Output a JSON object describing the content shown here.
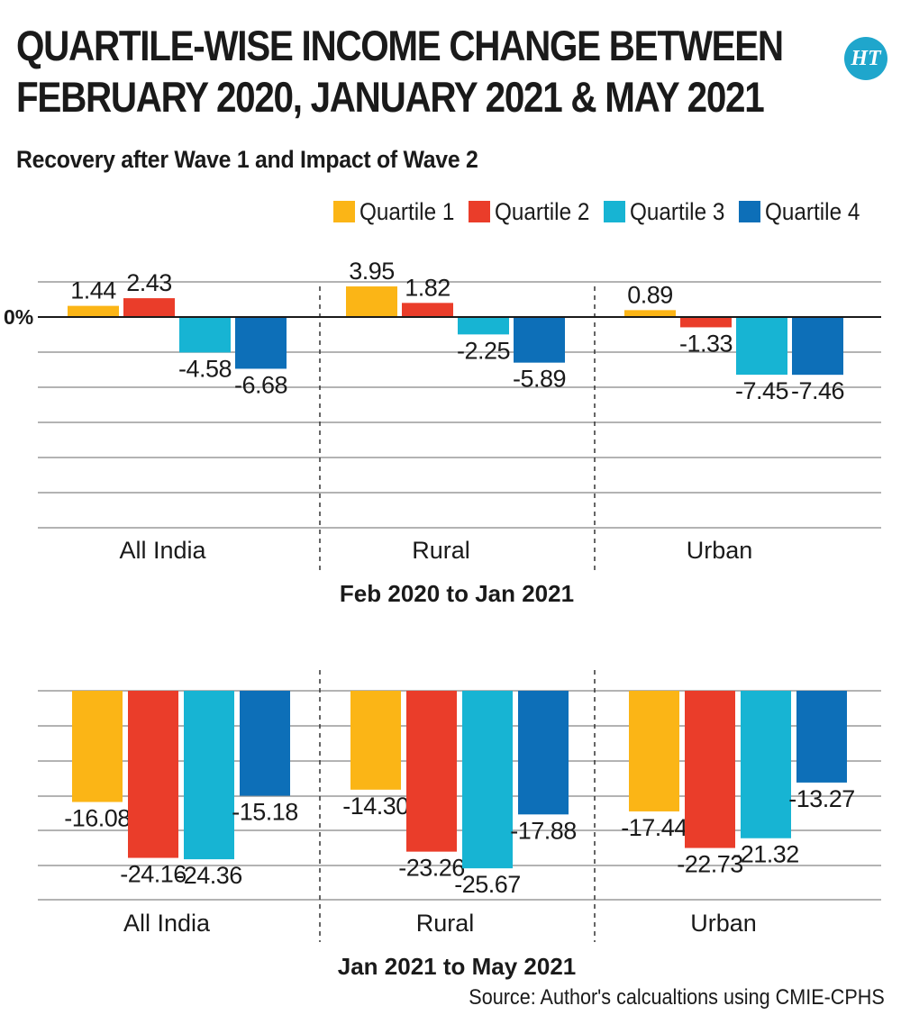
{
  "header": {
    "title_line1": "QUARTILE-WISE INCOME CHANGE BETWEEN",
    "title_line2": "FEBRUARY 2020, JANUARY 2021 & MAY 2021",
    "subtitle": "Recovery after Wave 1 and Impact of Wave 2",
    "logo_text": "HT"
  },
  "source": "Source: Author's calcualtions using CMIE-CPHS",
  "chart_data": [
    {
      "type": "bar",
      "title": "Feb 2020 to Jan 2021",
      "categories": [
        "All India",
        "Rural",
        "Urban"
      ],
      "series": [
        {
          "name": "Quartile 1",
          "color": "#fbb516",
          "values": [
            1.44,
            3.95,
            0.89
          ],
          "labels": [
            "1.44",
            "3.95",
            "0.89"
          ]
        },
        {
          "name": "Quartile 2",
          "color": "#ea3d2a",
          "values": [
            2.43,
            1.82,
            -1.33
          ],
          "labels": [
            "2.43",
            "1.82",
            "-1.33"
          ]
        },
        {
          "name": "Quartile 3",
          "color": "#17b4d3",
          "values": [
            -4.58,
            -2.25,
            -7.45
          ],
          "labels": [
            "-4.58",
            "-2.25",
            "-7.45"
          ]
        },
        {
          "name": "Quartile 4",
          "color": "#0d6fb8",
          "values": [
            -6.68,
            -5.89,
            -7.46
          ],
          "labels": [
            "-6.68",
            "-5.89",
            "-7.46"
          ]
        }
      ],
      "zero_label": "0%",
      "grid": true,
      "legend": "top-right"
    },
    {
      "type": "bar",
      "title": "Jan 2021 to May 2021",
      "categories": [
        "All India",
        "Rural",
        "Urban"
      ],
      "series": [
        {
          "name": "Quartile 1",
          "color": "#fbb516",
          "values": [
            -16.08,
            -14.3,
            -17.44
          ],
          "labels": [
            "-16.08",
            "-14.30",
            "-17.44"
          ]
        },
        {
          "name": "Quartile 2",
          "color": "#ea3d2a",
          "values": [
            -24.16,
            -23.26,
            -22.73
          ],
          "labels": [
            "-24.16",
            "-23.26",
            "-22.73"
          ]
        },
        {
          "name": "Quartile 3",
          "color": "#17b4d3",
          "values": [
            -24.36,
            -25.67,
            -21.32
          ],
          "labels": [
            "-24.36",
            "-25.67",
            "-21.32"
          ]
        },
        {
          "name": "Quartile 4",
          "color": "#0d6fb8",
          "values": [
            -15.18,
            -17.88,
            -13.27
          ],
          "labels": [
            "-15.18",
            "-17.88",
            "-13.27"
          ]
        }
      ],
      "grid": true
    }
  ]
}
